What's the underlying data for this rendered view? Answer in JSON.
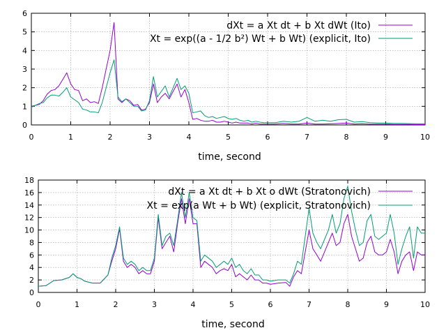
{
  "chart_data": [
    {
      "type": "line",
      "xlabel": "time, second",
      "ylabel": "",
      "xlim": [
        0,
        10
      ],
      "ylim": [
        0,
        6
      ],
      "xticks": [
        "0",
        "1",
        "2",
        "3",
        "4",
        "5",
        "6",
        "7",
        "8",
        "9",
        "10"
      ],
      "yticks": [
        "0",
        "1",
        "2",
        "3",
        "4",
        "5",
        "6"
      ],
      "grid": true,
      "legend_position": "top-right",
      "series": [
        {
          "name": "dXt = a Xt dt + b Xt dWt (Ito)",
          "color": "#9400d3",
          "x": [
            0,
            0.1,
            0.2,
            0.3,
            0.4,
            0.5,
            0.6,
            0.7,
            0.8,
            0.9,
            1.0,
            1.1,
            1.2,
            1.3,
            1.4,
            1.5,
            1.6,
            1.7,
            1.8,
            1.9,
            2.0,
            2.1,
            2.2,
            2.3,
            2.4,
            2.5,
            2.6,
            2.7,
            2.8,
            2.9,
            3.0,
            3.1,
            3.2,
            3.3,
            3.4,
            3.5,
            3.6,
            3.7,
            3.8,
            3.9,
            4.0,
            4.1,
            4.2,
            4.3,
            4.4,
            4.5,
            4.6,
            4.7,
            4.8,
            4.9,
            5.0,
            5.1,
            5.2,
            5.3,
            5.4,
            5.5,
            5.6,
            5.7,
            5.8,
            5.9,
            6.0,
            6.2,
            6.4,
            6.6,
            6.8,
            7.0,
            7.2,
            7.4,
            7.6,
            7.8,
            8.0,
            8.2,
            8.4,
            8.6,
            8.8,
            9.0,
            9.2,
            9.4,
            9.6,
            9.8,
            10.0
          ],
          "y": [
            1.0,
            1.05,
            1.1,
            1.3,
            1.65,
            1.85,
            1.9,
            2.1,
            2.45,
            2.8,
            2.2,
            1.9,
            1.85,
            1.3,
            1.4,
            1.2,
            1.25,
            1.15,
            2.0,
            3.0,
            4.0,
            5.5,
            1.4,
            1.2,
            1.4,
            1.3,
            1.05,
            1.1,
            0.8,
            0.85,
            1.2,
            2.2,
            1.2,
            1.5,
            1.7,
            1.4,
            1.8,
            2.2,
            1.5,
            1.9,
            1.2,
            0.3,
            0.35,
            0.25,
            0.2,
            0.2,
            0.25,
            0.15,
            0.15,
            0.2,
            0.15,
            0.1,
            0.15,
            0.1,
            0.1,
            0.1,
            0.05,
            0.1,
            0.05,
            0.05,
            0.05,
            0.05,
            0.08,
            0.05,
            0.05,
            0.1,
            0.05,
            0.05,
            0.06,
            0.08,
            0.1,
            0.05,
            0.06,
            0.04,
            0.04,
            0.04,
            0.03,
            0.03,
            0.03,
            0.02,
            0.02
          ]
        },
        {
          "name": "Xt = exp((a - 1/2 b²) Wt + b Wt) (explicit, Ito)",
          "color": "#009e73",
          "x": [
            0,
            0.1,
            0.2,
            0.3,
            0.4,
            0.5,
            0.6,
            0.7,
            0.8,
            0.9,
            1.0,
            1.1,
            1.2,
            1.3,
            1.4,
            1.5,
            1.6,
            1.7,
            1.8,
            1.9,
            2.0,
            2.1,
            2.2,
            2.3,
            2.4,
            2.5,
            2.6,
            2.7,
            2.8,
            2.9,
            3.0,
            3.1,
            3.2,
            3.3,
            3.4,
            3.5,
            3.6,
            3.7,
            3.8,
            3.9,
            4.0,
            4.1,
            4.2,
            4.3,
            4.4,
            4.5,
            4.6,
            4.7,
            4.8,
            4.9,
            5.0,
            5.1,
            5.2,
            5.3,
            5.4,
            5.5,
            5.6,
            5.7,
            5.8,
            5.9,
            6.0,
            6.2,
            6.4,
            6.6,
            6.8,
            7.0,
            7.2,
            7.4,
            7.6,
            7.8,
            8.0,
            8.2,
            8.4,
            8.6,
            8.8,
            9.0,
            9.2,
            9.4,
            9.6,
            9.8,
            10.0
          ],
          "y": [
            0.95,
            1.05,
            1.15,
            1.2,
            1.45,
            1.6,
            1.6,
            1.55,
            1.75,
            2.0,
            1.5,
            1.35,
            1.2,
            0.85,
            0.8,
            0.7,
            0.7,
            0.65,
            1.2,
            2.0,
            2.8,
            3.5,
            1.5,
            1.25,
            1.4,
            1.2,
            1.0,
            1.0,
            0.75,
            0.8,
            1.3,
            2.6,
            1.5,
            1.8,
            2.1,
            1.5,
            2.0,
            2.5,
            1.9,
            2.1,
            1.7,
            0.65,
            0.7,
            0.75,
            0.5,
            0.4,
            0.45,
            0.35,
            0.4,
            0.45,
            0.35,
            0.3,
            0.35,
            0.25,
            0.2,
            0.25,
            0.15,
            0.2,
            0.15,
            0.12,
            0.12,
            0.12,
            0.2,
            0.15,
            0.2,
            0.4,
            0.2,
            0.25,
            0.2,
            0.28,
            0.3,
            0.15,
            0.18,
            0.12,
            0.1,
            0.1,
            0.08,
            0.08,
            0.07,
            0.06,
            0.06
          ]
        }
      ]
    },
    {
      "type": "line",
      "xlabel": "time, second",
      "ylabel": "",
      "xlim": [
        0,
        10
      ],
      "ylim": [
        0,
        18
      ],
      "xticks": [
        "0",
        "1",
        "2",
        "3",
        "4",
        "5",
        "6",
        "7",
        "8",
        "9",
        "10"
      ],
      "yticks": [
        "0",
        "2",
        "4",
        "6",
        "8",
        "10",
        "12",
        "14",
        "16",
        "18"
      ],
      "grid": true,
      "legend_position": "top-right",
      "series": [
        {
          "name": "dXt = a Xt dt + b Xt o dWt (Stratonovich)",
          "color": "#9400d3",
          "x": [
            0,
            0.2,
            0.4,
            0.6,
            0.8,
            0.9,
            1.0,
            1.1,
            1.2,
            1.4,
            1.6,
            1.8,
            1.9,
            2.0,
            2.1,
            2.2,
            2.3,
            2.4,
            2.5,
            2.6,
            2.7,
            2.8,
            2.9,
            3.0,
            3.1,
            3.2,
            3.3,
            3.4,
            3.5,
            3.6,
            3.7,
            3.8,
            3.9,
            4.0,
            4.1,
            4.2,
            4.3,
            4.4,
            4.5,
            4.6,
            4.7,
            4.8,
            4.9,
            5.0,
            5.1,
            5.2,
            5.3,
            5.4,
            5.5,
            5.6,
            5.7,
            5.8,
            5.9,
            6.0,
            6.2,
            6.4,
            6.5,
            6.6,
            6.7,
            6.8,
            6.9,
            7.0,
            7.1,
            7.2,
            7.3,
            7.4,
            7.5,
            7.6,
            7.7,
            7.8,
            7.9,
            8.0,
            8.1,
            8.2,
            8.3,
            8.4,
            8.5,
            8.6,
            8.7,
            8.8,
            8.9,
            9.0,
            9.1,
            9.2,
            9.3,
            9.4,
            9.5,
            9.6,
            9.7,
            9.8,
            9.9,
            10.0
          ],
          "y": [
            1.0,
            1.1,
            1.9,
            2.0,
            2.4,
            3.0,
            2.4,
            2.2,
            1.8,
            1.5,
            1.5,
            2.8,
            5.0,
            7.0,
            10.2,
            5.0,
            4.0,
            4.5,
            4.0,
            3.0,
            3.5,
            3.0,
            3.0,
            5.0,
            12.0,
            7.0,
            8.0,
            9.0,
            6.5,
            11.0,
            15.0,
            11.0,
            15.0,
            11.0,
            11.0,
            4.0,
            5.0,
            4.5,
            4.0,
            3.0,
            3.5,
            3.8,
            3.5,
            4.5,
            2.5,
            3.0,
            2.5,
            2.0,
            2.8,
            2.0,
            2.0,
            1.5,
            1.5,
            1.3,
            1.5,
            1.6,
            1.0,
            2.5,
            3.5,
            3.0,
            6.5,
            10.0,
            7.0,
            6.0,
            5.0,
            6.5,
            8.0,
            9.5,
            7.5,
            8.0,
            11.0,
            12.5,
            9.0,
            7.0,
            5.0,
            5.5,
            8.0,
            9.0,
            6.5,
            6.0,
            6.0,
            6.5,
            8.5,
            6.5,
            3.0,
            5.0,
            6.0,
            6.5,
            3.5,
            6.5,
            6.0,
            6.0
          ]
        },
        {
          "name": "Xt = exp(a Wt + b Wt) (explicit, Stratonovich)",
          "color": "#009e73",
          "x": [
            0,
            0.2,
            0.4,
            0.6,
            0.8,
            0.9,
            1.0,
            1.1,
            1.2,
            1.4,
            1.6,
            1.8,
            1.9,
            2.0,
            2.1,
            2.2,
            2.3,
            2.4,
            2.5,
            2.6,
            2.7,
            2.8,
            2.9,
            3.0,
            3.1,
            3.2,
            3.3,
            3.4,
            3.5,
            3.6,
            3.7,
            3.8,
            3.9,
            4.0,
            4.1,
            4.2,
            4.3,
            4.4,
            4.5,
            4.6,
            4.7,
            4.8,
            4.9,
            5.0,
            5.1,
            5.2,
            5.3,
            5.4,
            5.5,
            5.6,
            5.7,
            5.8,
            5.9,
            6.0,
            6.2,
            6.4,
            6.5,
            6.6,
            6.7,
            6.8,
            6.9,
            7.0,
            7.1,
            7.2,
            7.3,
            7.4,
            7.5,
            7.6,
            7.7,
            7.8,
            7.9,
            8.0,
            8.1,
            8.2,
            8.3,
            8.4,
            8.5,
            8.6,
            8.7,
            8.8,
            8.9,
            9.0,
            9.1,
            9.2,
            9.3,
            9.4,
            9.5,
            9.6,
            9.7,
            9.8,
            9.9,
            10.0
          ],
          "y": [
            1.0,
            1.1,
            1.9,
            2.0,
            2.4,
            3.0,
            2.4,
            2.2,
            1.8,
            1.5,
            1.5,
            2.8,
            5.5,
            7.5,
            10.5,
            5.5,
            4.5,
            5.0,
            4.5,
            3.5,
            4.0,
            3.5,
            3.5,
            5.5,
            12.5,
            7.5,
            9.0,
            9.5,
            7.5,
            11.5,
            16.0,
            12.0,
            16.0,
            12.0,
            11.5,
            5.0,
            6.0,
            5.5,
            5.0,
            4.0,
            4.5,
            5.0,
            4.5,
            5.5,
            4.0,
            4.5,
            3.5,
            3.0,
            3.8,
            2.8,
            2.8,
            2.0,
            2.0,
            1.8,
            2.0,
            2.0,
            1.5,
            3.0,
            5.0,
            4.5,
            9.0,
            13.5,
            9.5,
            8.0,
            7.0,
            8.5,
            10.0,
            12.5,
            9.5,
            11.0,
            15.0,
            17.0,
            13.0,
            10.0,
            7.5,
            8.0,
            11.5,
            12.5,
            9.0,
            8.5,
            9.0,
            9.5,
            12.5,
            9.5,
            4.5,
            7.0,
            9.0,
            10.5,
            5.5,
            10.5,
            9.5,
            9.5
          ]
        }
      ]
    }
  ]
}
